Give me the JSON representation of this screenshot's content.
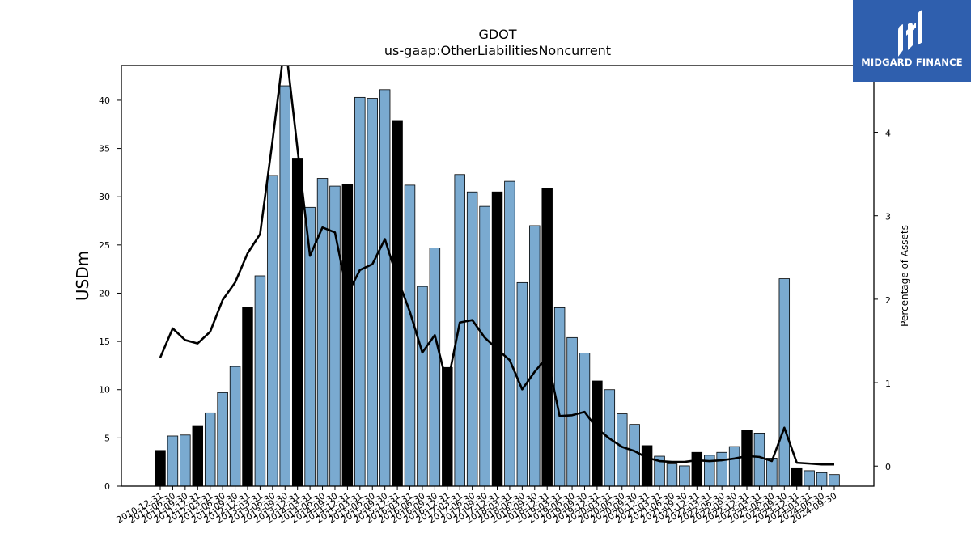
{
  "chart_data": {
    "type": "bar",
    "title": "GDOT",
    "subtitle": "us-gaap:OtherLiabilitiesNoncurrent",
    "ylabel": "USDm",
    "y2label": "Percentage of Assets",
    "ylim": [
      0,
      43.6
    ],
    "y2lim": [
      -0.24,
      4.8
    ],
    "yticks": [
      0,
      5,
      10,
      15,
      20,
      25,
      30,
      35,
      40
    ],
    "y2ticks": [
      0,
      1,
      2,
      3,
      4
    ],
    "categories": [
      "2010-12-31",
      "2011-06-30",
      "2011-09-30",
      "2011-12-31",
      "2012-03-31",
      "2012-06-30",
      "2012-09-30",
      "2012-12-31",
      "2013-03-31",
      "2013-06-30",
      "2013-09-30",
      "2013-12-31",
      "2014-03-31",
      "2014-06-30",
      "2014-09-30",
      "2014-12-31",
      "2015-03-31",
      "2015-06-30",
      "2015-09-30",
      "2015-12-31",
      "2016-03-31",
      "2016-06-30",
      "2016-09-30",
      "2016-12-31",
      "2017-03-31",
      "2017-06-30",
      "2017-09-30",
      "2017-12-31",
      "2018-03-31",
      "2018-06-30",
      "2018-09-30",
      "2018-12-31",
      "2019-03-31",
      "2019-06-30",
      "2019-09-30",
      "2019-12-31",
      "2020-03-31",
      "2020-06-30",
      "2020-09-30",
      "2020-12-31",
      "2021-03-31",
      "2021-06-30",
      "2021-09-30",
      "2021-12-31",
      "2022-03-31",
      "2022-06-30",
      "2022-09-30",
      "2022-12-31",
      "2023-03-31",
      "2023-06-30",
      "2023-09-30",
      "2023-12-31",
      "2024-03-31",
      "2024-06-30",
      "2024-09-30"
    ],
    "xtick_labels": [
      "2010-12-31",
      "2011-06-30",
      "2011-09-30",
      "2011-12-31",
      "2012-03-31",
      "2012-06-30",
      "2012-09-30",
      "2012-12-31",
      "2013-03-31",
      "2013-06-30",
      "2013-09-30",
      "2013-12-31",
      "2014-03-31",
      "2014-06-30",
      "2014-09-30",
      "2014-12-31",
      "2015-03-31",
      "2015-06-30",
      "2015-09-30",
      "2015-12-31",
      "2016-03-31",
      "2016-06-30",
      "2016-09-30",
      "2016-12-31",
      "2017-03-31",
      "2017-06-30",
      "2017-09-30",
      "2017-12-31",
      "2018-03-31",
      "2018-06-30",
      "2018-09-30",
      "2018-12-31",
      "2019-03-31",
      "2019-06-30",
      "2019-09-30",
      "2019-12-31",
      "2020-03-31",
      "2020-06-30",
      "2020-09-30",
      "2020-12-31",
      "2021-03-31",
      "2021-06-30",
      "2021-09-30",
      "2021-12-31",
      "2022-03-31",
      "2022-06-30",
      "2022-09-30",
      "2022-12-31",
      "2023-03-31",
      "2023-06-30",
      "2023-09-30",
      "2023-12-31",
      "2024-03-31",
      "2024-06-30",
      "2024-09-30"
    ],
    "series": [
      {
        "type": "bar",
        "axis": "left",
        "values": [
          3.7,
          5.2,
          5.3,
          6.2,
          7.6,
          9.7,
          12.4,
          18.5,
          21.8,
          32.2,
          41.5,
          34.0,
          28.9,
          31.9,
          31.1,
          31.3,
          40.3,
          40.2,
          41.1,
          37.9,
          31.2,
          20.7,
          24.7,
          12.3,
          32.3,
          30.5,
          29.0,
          30.5,
          31.6,
          21.1,
          27.0,
          30.9,
          18.5,
          15.4,
          13.8,
          10.9,
          10.0,
          7.5,
          6.4,
          4.2,
          3.1,
          2.3,
          2.1,
          3.5,
          3.2,
          3.5,
          4.1,
          5.8,
          5.5,
          2.9,
          21.5,
          1.9,
          1.6,
          1.4,
          1.2
        ],
        "annual_year_end": [
          true,
          false,
          false,
          true,
          false,
          false,
          false,
          true,
          false,
          false,
          false,
          true,
          false,
          false,
          false,
          true,
          false,
          false,
          false,
          true,
          false,
          false,
          false,
          true,
          false,
          false,
          false,
          true,
          false,
          false,
          false,
          true,
          false,
          false,
          false,
          true,
          false,
          false,
          false,
          true,
          false,
          false,
          false,
          true,
          false,
          false,
          false,
          true,
          false,
          false,
          false,
          true,
          false,
          false,
          false
        ]
      },
      {
        "type": "line",
        "axis": "right",
        "values": [
          1.3,
          1.65,
          1.51,
          1.47,
          1.61,
          1.99,
          2.2,
          2.55,
          2.78,
          3.9,
          5.1,
          3.8,
          2.52,
          2.86,
          2.8,
          2.06,
          2.35,
          2.42,
          2.72,
          2.25,
          1.85,
          1.36,
          1.57,
          0.97,
          1.72,
          1.75,
          1.54,
          1.4,
          1.27,
          0.92,
          1.13,
          1.31,
          0.6,
          0.61,
          0.65,
          0.45,
          0.33,
          0.23,
          0.18,
          0.1,
          0.06,
          0.05,
          0.05,
          0.07,
          0.06,
          0.07,
          0.09,
          0.12,
          0.11,
          0.06,
          0.46,
          0.04,
          0.03,
          0.02,
          0.02
        ]
      }
    ],
    "colors": {
      "bar": "#7aaad0",
      "bar_annual": "#000000",
      "line": "#000000",
      "edge": "#000000"
    }
  },
  "logo": {
    "text": "MIDGARD FINANCE",
    "background": "#2f5fae"
  }
}
